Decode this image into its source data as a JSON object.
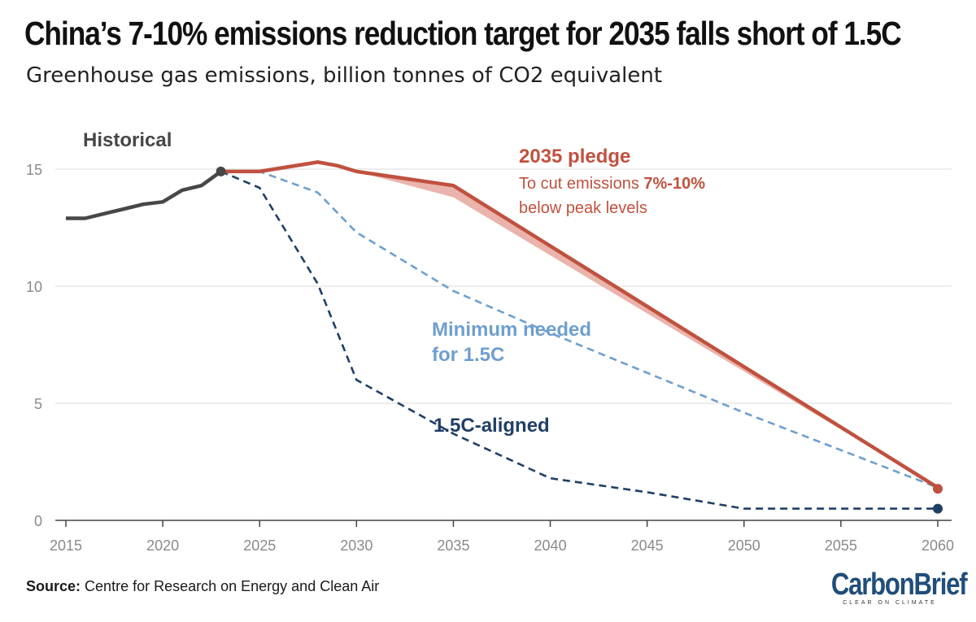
{
  "header": {
    "title": "China’s 7-10% emissions reduction target for 2035 falls short of 1.5C",
    "subtitle": "Greenhouse gas emissions, billion tonnes of CO2 equivalent"
  },
  "footer": {
    "source_label": "Source:",
    "source_text": "Centre for Research on Energy and Clean Air",
    "logo_text": "CarbonBrief",
    "logo_tagline": "CLEAR ON CLIMATE"
  },
  "colors": {
    "historical": "#474747",
    "pledge": "#c0513f",
    "pledge_band": "#eab3ab",
    "minimum": "#6e9fce",
    "aligned": "#203f66",
    "axis_text": "#8a8a8a",
    "grid": "#e2e2e2"
  },
  "chart_data": {
    "type": "line",
    "title": "China’s 7-10% emissions reduction target for 2035 falls short of 1.5C",
    "subtitle": "Greenhouse gas emissions, billion tonnes of CO2 equivalent",
    "xlabel": "",
    "ylabel": "",
    "xlim": [
      2015,
      2060
    ],
    "ylim": [
      0,
      15
    ],
    "x_ticks": [
      2015,
      2020,
      2025,
      2030,
      2035,
      2040,
      2045,
      2050,
      2055,
      2060
    ],
    "y_ticks": [
      0,
      5,
      10,
      15
    ],
    "grid": true,
    "series": [
      {
        "key": "historical",
        "label": "Historical",
        "style": "solid",
        "points": [
          [
            2015,
            12.9
          ],
          [
            2016,
            12.9
          ],
          [
            2017,
            13.1
          ],
          [
            2018,
            13.3
          ],
          [
            2019,
            13.5
          ],
          [
            2020,
            13.6
          ],
          [
            2021,
            14.1
          ],
          [
            2022,
            14.3
          ],
          [
            2023,
            14.9
          ]
        ]
      },
      {
        "key": "pledge",
        "label": "2035 pledge",
        "note_prefix": "To cut emissions ",
        "note_bold": "7%-10%",
        "note_line2": "below peak levels",
        "style": "solid",
        "points": [
          [
            2023,
            14.9
          ],
          [
            2025,
            14.9
          ],
          [
            2028,
            15.3
          ],
          [
            2029,
            15.15
          ],
          [
            2030,
            14.9
          ],
          [
            2035,
            14.3
          ],
          [
            2060,
            1.4
          ]
        ],
        "band_lower": [
          [
            2023,
            14.9
          ],
          [
            2025,
            14.9
          ],
          [
            2028,
            15.3
          ],
          [
            2029,
            15.15
          ],
          [
            2030,
            14.9
          ],
          [
            2035,
            13.8
          ],
          [
            2060,
            1.4
          ]
        ]
      },
      {
        "key": "minimum",
        "label_line1": "Minimum needed",
        "label_line2": "for 1.5C",
        "style": "dashed",
        "points": [
          [
            2023,
            14.9
          ],
          [
            2025,
            14.9
          ],
          [
            2028,
            14.0
          ],
          [
            2030,
            12.3
          ],
          [
            2035,
            9.8
          ],
          [
            2040,
            8.0
          ],
          [
            2050,
            4.6
          ],
          [
            2060,
            1.4
          ]
        ]
      },
      {
        "key": "aligned",
        "label": "1.5C-aligned",
        "style": "dashed",
        "points": [
          [
            2023,
            14.9
          ],
          [
            2025,
            14.2
          ],
          [
            2028,
            10.1
          ],
          [
            2030,
            6.0
          ],
          [
            2035,
            3.7
          ],
          [
            2040,
            1.8
          ],
          [
            2045,
            1.2
          ],
          [
            2050,
            0.5
          ],
          [
            2060,
            0.5
          ]
        ]
      }
    ],
    "markers": [
      {
        "series": "historical",
        "x": 2023,
        "y": 14.9
      },
      {
        "series": "pledge",
        "x": 2060,
        "y": 1.35
      },
      {
        "series": "aligned",
        "x": 2060,
        "y": 0.5
      }
    ]
  }
}
